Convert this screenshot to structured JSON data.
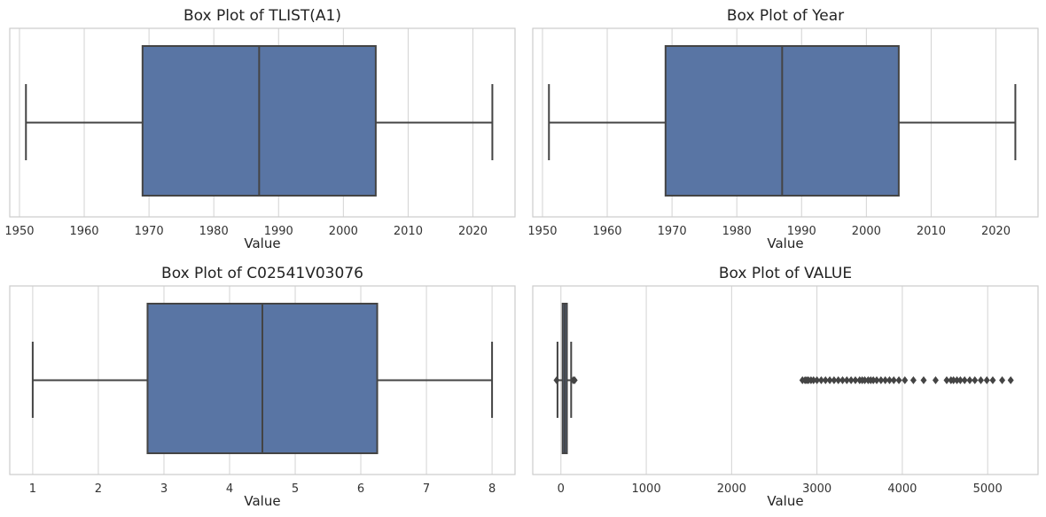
{
  "chart_data": [
    {
      "type": "box",
      "title": "Box Plot of TLIST(A1)",
      "xlabel": "Value",
      "xlim": [
        1948.5,
        2026.5
      ],
      "xticks": [
        1950,
        1960,
        1970,
        1980,
        1990,
        2000,
        2010,
        2020
      ],
      "tick_labels": [
        "1950",
        "1960",
        "1970",
        "1980",
        "1990",
        "2000",
        "2010",
        "2020"
      ],
      "grid": true,
      "box_color": "#5975a4",
      "stats": {
        "whisker_low": 1951,
        "q1": 1969,
        "median": 1987,
        "q3": 2005,
        "whisker_high": 2023
      },
      "outliers": []
    },
    {
      "type": "box",
      "title": "Box Plot of Year",
      "xlabel": "Value",
      "xlim": [
        1948.5,
        2026.5
      ],
      "xticks": [
        1950,
        1960,
        1970,
        1980,
        1990,
        2000,
        2010,
        2020
      ],
      "tick_labels": [
        "1950",
        "1960",
        "1970",
        "1980",
        "1990",
        "2000",
        "2010",
        "2020"
      ],
      "grid": true,
      "box_color": "#5975a4",
      "stats": {
        "whisker_low": 1951,
        "q1": 1969,
        "median": 1987,
        "q3": 2005,
        "whisker_high": 2023
      },
      "outliers": []
    },
    {
      "type": "box",
      "title": "Box Plot of C02541V03076",
      "xlabel": "Value",
      "xlim": [
        0.65,
        8.35
      ],
      "xticks": [
        1,
        2,
        3,
        4,
        5,
        6,
        7,
        8
      ],
      "tick_labels": [
        "1",
        "2",
        "3",
        "4",
        "5",
        "6",
        "7",
        "8"
      ],
      "grid": true,
      "box_color": "#5975a4",
      "stats": {
        "whisker_low": 1,
        "q1": 2.75,
        "median": 4.5,
        "q3": 6.25,
        "whisker_high": 8
      },
      "outliers": []
    },
    {
      "type": "box",
      "title": "Box Plot of VALUE",
      "xlabel": "Value",
      "xlim": [
        -330,
        5590
      ],
      "xticks": [
        0,
        1000,
        2000,
        3000,
        4000,
        5000
      ],
      "tick_labels": [
        "0",
        "1000",
        "2000",
        "3000",
        "4000",
        "5000"
      ],
      "grid": true,
      "box_color": "#5975a4",
      "stats": {
        "whisker_low": -40,
        "q1": 20,
        "median": 45,
        "q3": 70,
        "whisker_high": 120
      },
      "outliers": [
        -50,
        145,
        160,
        2830,
        2860,
        2880,
        2900,
        2930,
        2960,
        3000,
        3050,
        3100,
        3150,
        3200,
        3250,
        3300,
        3350,
        3400,
        3450,
        3500,
        3530,
        3560,
        3600,
        3630,
        3660,
        3700,
        3750,
        3800,
        3850,
        3900,
        3960,
        4030,
        4130,
        4250,
        4390,
        4520,
        4570,
        4600,
        4640,
        4680,
        4730,
        4790,
        4850,
        4920,
        4990,
        5060,
        5170,
        5270
      ]
    }
  ]
}
